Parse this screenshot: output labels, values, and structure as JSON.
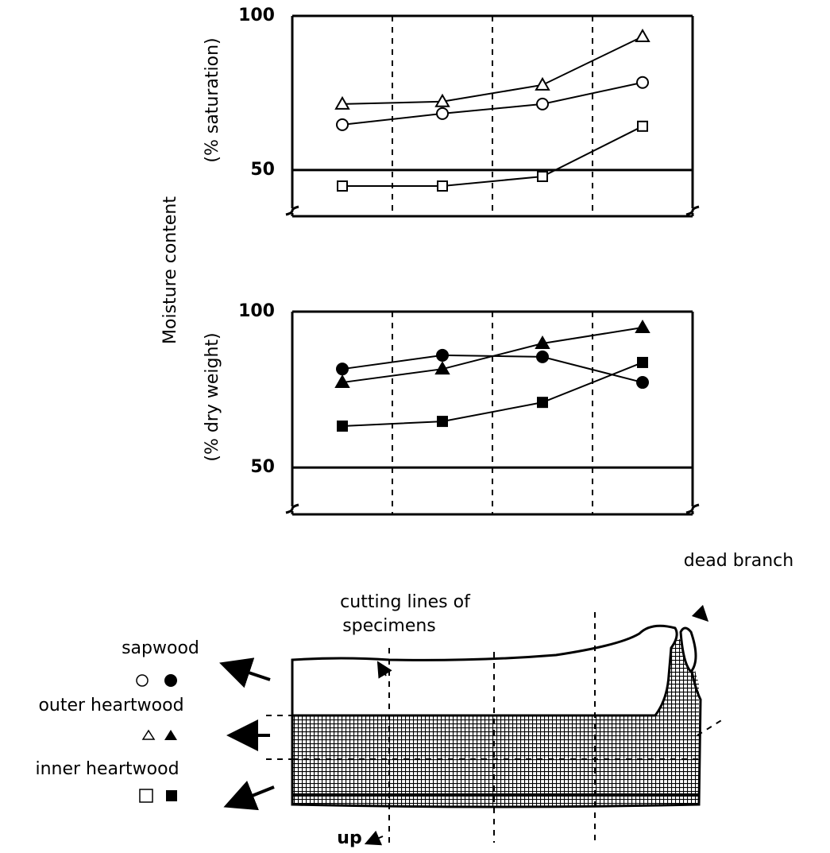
{
  "y_label": "Moisture content",
  "chart_data": [
    {
      "type": "line",
      "ylabel": "(% saturation)",
      "categories": [
        null,
        null,
        null,
        null
      ],
      "ylim": [
        35,
        100
      ],
      "yticks": [
        50,
        100
      ],
      "grid": true,
      "series": [
        {
          "marker": "triangle",
          "filled": false,
          "color": "#000000",
          "values": [
            71.4,
            72.2,
            77.6,
            93.3
          ]
        },
        {
          "marker": "circle",
          "filled": false,
          "color": "#000000",
          "values": [
            64.7,
            68.3,
            71.4,
            78.4
          ]
        },
        {
          "marker": "square",
          "filled": false,
          "color": "#000000",
          "values": [
            44.8,
            44.8,
            47.9,
            64.2
          ]
        }
      ]
    },
    {
      "type": "line",
      "ylabel": "(% dry weight)",
      "categories": [
        null,
        null,
        null,
        null
      ],
      "ylim": [
        35,
        100
      ],
      "yticks": [
        50,
        100
      ],
      "grid": true,
      "series": [
        {
          "marker": "circle",
          "filled": true,
          "color": "#000000",
          "values": [
            81.6,
            86.0,
            85.5,
            77.3
          ]
        },
        {
          "marker": "triangle",
          "filled": true,
          "color": "#000000",
          "values": [
            77.3,
            81.6,
            89.8,
            94.9
          ]
        },
        {
          "marker": "square",
          "filled": true,
          "color": "#000000",
          "values": [
            63.3,
            64.8,
            70.9,
            83.7
          ]
        }
      ]
    }
  ],
  "diagram": {
    "cutting_lines": [
      "cutting lines of",
      "specimens"
    ],
    "dead_branch": "dead branch",
    "tissues": [
      "sapwood",
      "outer heartwood",
      "inner heartwood"
    ],
    "up": "up"
  }
}
